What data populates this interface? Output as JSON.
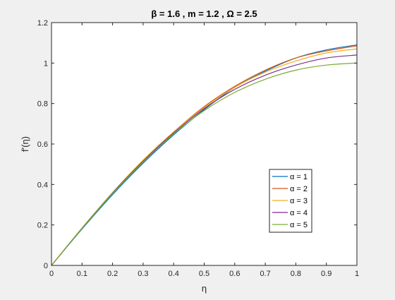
{
  "chart_data": {
    "type": "line",
    "title": "β = 1.6 , m = 1.2  , Ω = 2.5",
    "xlabel": "η",
    "ylabel": "f'(η)",
    "xlim": [
      0,
      1
    ],
    "ylim": [
      0,
      1.2
    ],
    "xticks": [
      "0",
      "0.1",
      "0.2",
      "0.3",
      "0.4",
      "0.5",
      "0.6",
      "0.7",
      "0.8",
      "0.9",
      "1"
    ],
    "yticks": [
      "0",
      "0.2",
      "0.4",
      "0.6",
      "0.8",
      "1",
      "1.2"
    ],
    "grid": false,
    "legend_position": "lower-right",
    "x": [
      0,
      0.1,
      0.2,
      0.3,
      0.4,
      0.5,
      0.6,
      0.7,
      0.8,
      0.9,
      1.0
    ],
    "series": [
      {
        "name": "α = 1",
        "color": "#0072BD",
        "values": [
          0,
          0.18,
          0.35,
          0.505,
          0.645,
          0.77,
          0.88,
          0.96,
          1.025,
          1.065,
          1.09
        ]
      },
      {
        "name": "α = 2",
        "color": "#D95319",
        "values": [
          0,
          0.185,
          0.36,
          0.52,
          0.66,
          0.785,
          0.885,
          0.965,
          1.025,
          1.06,
          1.085
        ]
      },
      {
        "name": "α = 3",
        "color": "#EDB120",
        "values": [
          0,
          0.185,
          0.36,
          0.52,
          0.66,
          0.78,
          0.88,
          0.955,
          1.01,
          1.05,
          1.07
        ]
      },
      {
        "name": "α = 4",
        "color": "#7E2F8E",
        "values": [
          0,
          0.183,
          0.358,
          0.515,
          0.655,
          0.775,
          0.87,
          0.94,
          0.99,
          1.025,
          1.04
        ]
      },
      {
        "name": "α = 5",
        "color": "#77AC30",
        "values": [
          0,
          0.183,
          0.356,
          0.51,
          0.65,
          0.765,
          0.855,
          0.92,
          0.965,
          0.99,
          1.0
        ]
      }
    ]
  }
}
